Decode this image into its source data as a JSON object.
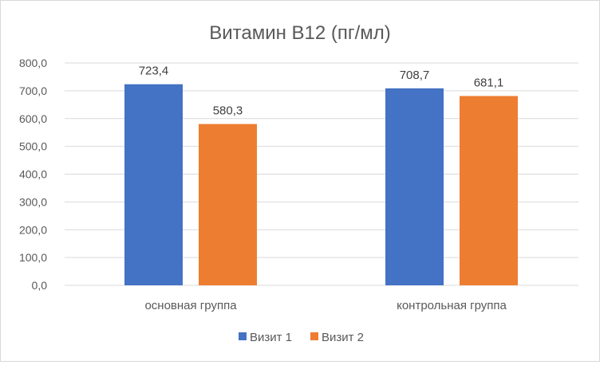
{
  "chart_data": {
    "type": "bar",
    "title": "Витамин B12 (пг/мл)",
    "categories": [
      "основная группа",
      "контрольная группа"
    ],
    "series": [
      {
        "name": "Визит 1",
        "values": [
          723.4,
          708.7
        ],
        "color": "#4472C4"
      },
      {
        "name": "Визит 2",
        "values": [
          580.3,
          681.1
        ],
        "color": "#ED7D31"
      }
    ],
    "ylim": [
      0,
      800
    ],
    "yticks": [
      0,
      100,
      200,
      300,
      400,
      500,
      600,
      700,
      800
    ],
    "ytick_labels": [
      "0,0",
      "100,0",
      "200,0",
      "300,0",
      "400,0",
      "500,0",
      "600,0",
      "700,0",
      "800,0"
    ],
    "data_labels": [
      [
        "723,4",
        "708,7"
      ],
      [
        "580,3",
        "681,1"
      ]
    ],
    "grid": true,
    "legend_position": "bottom"
  }
}
